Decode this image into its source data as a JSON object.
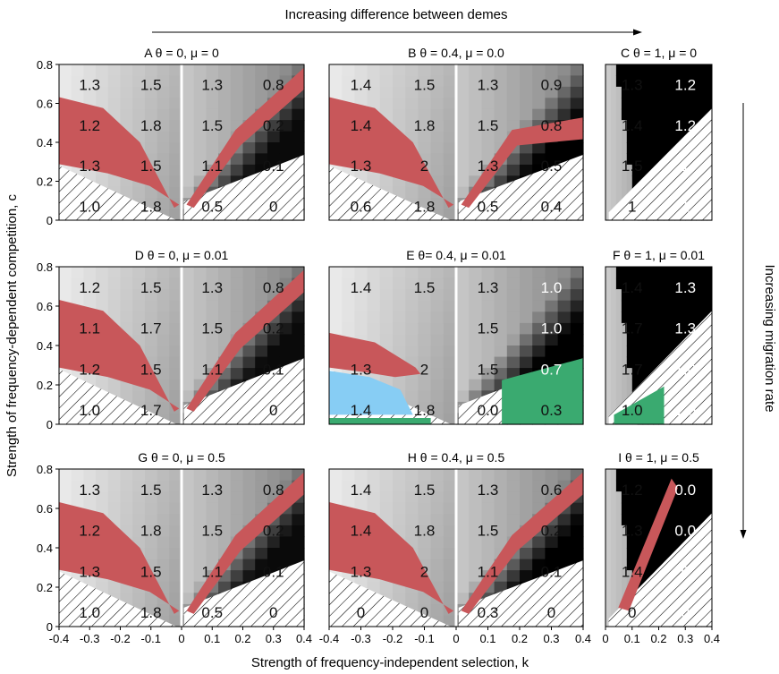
{
  "figure": {
    "top_label": "Increasing difference between demes",
    "right_label": "Increasing migration rate",
    "xlabel": "Strength of frequency-independent selection, k",
    "ylabel": "Strength of frequency-dependent competition, c"
  },
  "chart_data": [
    {
      "id": "A",
      "title": "A θ = 0, μ = 0",
      "type": "heatmap",
      "xlim": [
        -0.4,
        0.4
      ],
      "ylim": [
        0,
        0.8
      ],
      "labels": [
        [
          "1.3",
          "1.5",
          "1.3",
          "0.8"
        ],
        [
          "1.2",
          "1.8",
          "1.5",
          "0.2"
        ],
        [
          "1.3",
          "1.5",
          "1.1",
          "0.1"
        ],
        [
          "1.0",
          "1.8",
          "0.5",
          "0"
        ]
      ]
    },
    {
      "id": "B",
      "title": "B θ = 0.4, μ = 0.0",
      "type": "heatmap",
      "xlim": [
        -0.4,
        0.4
      ],
      "ylim": [
        0,
        0.8
      ],
      "labels": [
        [
          "1.4",
          "1.5",
          "1.3",
          "0.9"
        ],
        [
          "1.4",
          "1.8",
          "1.5",
          "0.8"
        ],
        [
          "1.3",
          "2",
          "1.3",
          "0.5"
        ],
        [
          "0.6",
          "1.8",
          "0.5",
          "0.4"
        ]
      ]
    },
    {
      "id": "C",
      "title": "C θ = 1, μ = 0",
      "type": "heatmap",
      "xlim": [
        0,
        0.4
      ],
      "ylim": [
        0,
        0.8
      ],
      "labels": [
        [
          "1.3",
          "1.2"
        ],
        [
          "1.4",
          "1.2"
        ],
        [
          "1.5",
          "1"
        ],
        [
          "1",
          "1"
        ]
      ]
    },
    {
      "id": "D",
      "title": "D θ = 0, μ = 0.01",
      "type": "heatmap",
      "xlim": [
        -0.4,
        0.4
      ],
      "ylim": [
        0,
        0.8
      ],
      "labels": [
        [
          "1.2",
          "1.5",
          "1.3",
          "0.8"
        ],
        [
          "1.1",
          "1.7",
          "1.5",
          "0.2"
        ],
        [
          "1.2",
          "1.5",
          "1.1",
          "0.1"
        ],
        [
          "1.0",
          "1.7",
          "",
          "0"
        ]
      ]
    },
    {
      "id": "E",
      "title": "E θ= 0.4, μ = 0.01",
      "type": "heatmap",
      "xlim": [
        -0.4,
        0.4
      ],
      "ylim": [
        0,
        0.8
      ],
      "labels": [
        [
          "1.4",
          "1.5",
          "1.3",
          "1.0"
        ],
        [
          "",
          "",
          "1.5",
          "1.0"
        ],
        [
          "1.3",
          "2",
          "1.5",
          "0.7"
        ],
        [
          "1.4",
          "1.8",
          "0.0",
          "0.3"
        ]
      ]
    },
    {
      "id": "F",
      "title": "F θ = 1, μ = 0.01",
      "type": "heatmap",
      "xlim": [
        0,
        0.4
      ],
      "ylim": [
        0,
        0.8
      ],
      "labels": [
        [
          "1.4",
          "1.3"
        ],
        [
          "1.7",
          "1.3"
        ],
        [
          "1.7",
          "1.0"
        ],
        [
          "1.0",
          "1.0"
        ]
      ]
    },
    {
      "id": "G",
      "title": "G θ = 0, μ = 0.5",
      "type": "heatmap",
      "xlim": [
        -0.4,
        0.4
      ],
      "ylim": [
        0,
        0.8
      ],
      "labels": [
        [
          "1.3",
          "1.5",
          "1.3",
          "0.8"
        ],
        [
          "1.2",
          "1.8",
          "1.5",
          "0.2"
        ],
        [
          "1.3",
          "1.5",
          "1.1",
          "0.1"
        ],
        [
          "1.0",
          "1.8",
          "0.5",
          "0"
        ]
      ]
    },
    {
      "id": "H",
      "title": "H θ = 0.4, μ = 0.5",
      "type": "heatmap",
      "xlim": [
        -0.4,
        0.4
      ],
      "ylim": [
        0,
        0.8
      ],
      "labels": [
        [
          "1.4",
          "1.5",
          "1.3",
          "0.6"
        ],
        [
          "1.4",
          "1.8",
          "1.5",
          "0.2"
        ],
        [
          "1.3",
          "2",
          "1.1",
          "0.1"
        ],
        [
          "0",
          "0",
          "0.3",
          "0"
        ]
      ]
    },
    {
      "id": "I",
      "title": "I θ = 1, μ = 0.5",
      "type": "heatmap",
      "xlim": [
        0,
        0.4
      ],
      "ylim": [
        0,
        0.8
      ],
      "labels": [
        [
          "1.2",
          "0.0"
        ],
        [
          "1.3",
          "0.0"
        ],
        [
          "1.4",
          "0"
        ],
        [
          "0",
          "0"
        ]
      ]
    }
  ],
  "ticks": {
    "y": [
      "0",
      "0.2",
      "0.4",
      "0.6",
      "0.8"
    ],
    "x_wide": [
      "-0.4",
      "-0.3",
      "-0.2",
      "-0.1",
      "0",
      "0.1",
      "0.2",
      "0.3",
      "0.4"
    ],
    "x_narrow": [
      "0",
      "0.1",
      "0.2",
      "0.3",
      "0.4"
    ]
  },
  "colors": {
    "red": "#c8575a",
    "blue": "#87cdf4",
    "green": "#3aaa70",
    "black": "#000000"
  }
}
